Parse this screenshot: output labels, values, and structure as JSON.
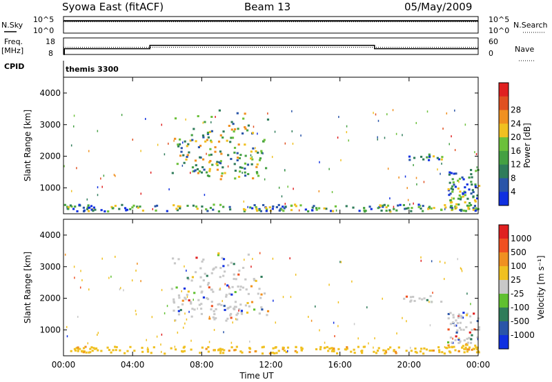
{
  "header": {
    "station": "Syowa East (fitACF)",
    "beam": "Beam 13",
    "date": "05/May/2009"
  },
  "labels": {
    "nsky": "N.Sky",
    "nsearch": "N.Search",
    "freq": "Freq.",
    "mhz": "[MHz]",
    "nave": "Nave",
    "cpid_label": "CPID",
    "cpid_value": "themis 3300",
    "nsky_max": "10^5",
    "nsky_min": "10^0",
    "freq_max": "18",
    "freq_min": "8",
    "nave_max": "60",
    "nave_min": "0"
  },
  "chart_data": [
    {
      "type": "line",
      "name": "noise",
      "x": [
        0,
        24
      ],
      "series": [
        {
          "name": "N.Sky",
          "values": [
            3.7,
            3.7
          ]
        },
        {
          "name": "N.Search",
          "values": [
            3.4,
            3.4
          ]
        }
      ],
      "xlim": [
        0,
        24
      ]
    },
    {
      "type": "line",
      "name": "freq-nave",
      "x": [
        0,
        0.05,
        5,
        18,
        24
      ],
      "series": [
        {
          "name": "Freq. [MHz]",
          "values": [
            8,
            11.5,
            13.5,
            11.5,
            11.5
          ]
        },
        {
          "name": "Nave",
          "values": [
            26,
            26,
            26,
            26,
            26
          ]
        }
      ],
      "xlim": [
        0,
        24
      ],
      "ylim": [
        8,
        18
      ]
    },
    {
      "type": "heatmap",
      "name": "power",
      "ylabel": "Slant Range [km]",
      "colorbar_label": "Power [dB]",
      "colorbar_ticks": [
        "4",
        "8",
        "12",
        "16",
        "20",
        "24",
        "28"
      ],
      "colorbar_colors": [
        "#1030e0",
        "#2a55a8",
        "#2f7c5a",
        "#44a042",
        "#6cc03a",
        "#f0c020",
        "#f09020",
        "#e05020",
        "#e02020"
      ],
      "yticks": [
        "1000",
        "2000",
        "3000",
        "4000"
      ],
      "ylim": [
        180,
        4500
      ],
      "xlim": [
        0,
        24
      ],
      "regions": [
        {
          "t0": 6.2,
          "t1": 11.8,
          "r0": 1300,
          "r1": 3500,
          "level": 0.55
        },
        {
          "t0": 0.0,
          "t1": 1.8,
          "r0": 280,
          "r1": 480,
          "level": 0.3
        },
        {
          "t0": 22.2,
          "t1": 24,
          "r0": 300,
          "r1": 1600,
          "level": 0.35
        },
        {
          "t0": 19.6,
          "t1": 21.9,
          "r0": 1900,
          "r1": 2100,
          "level": 0.25
        },
        {
          "t0": 0,
          "t1": 24,
          "r0": 280,
          "r1": 500,
          "level": 0.3
        }
      ]
    },
    {
      "type": "heatmap",
      "name": "velocity",
      "ylabel": "Slant Range [km]",
      "colorbar_label": "Velocity [m s⁻¹]",
      "colorbar_ticks": [
        "1000",
        "500",
        "100",
        "25",
        "-25",
        "-100",
        "-500",
        "-1000"
      ],
      "colorbar_colors": [
        "#1030e0",
        "#2a55a8",
        "#2f7c5a",
        "#60c030",
        "#c8c8c8",
        "#f0c020",
        "#f09020",
        "#f05020",
        "#e02020"
      ],
      "yticks": [
        "1000",
        "2000",
        "3000",
        "4000"
      ],
      "ylim": [
        180,
        4500
      ],
      "xlim": [
        0,
        24
      ],
      "xlabel": "Time UT",
      "xticks": [
        "00:00",
        "04:00",
        "08:00",
        "12:00",
        "16:00",
        "20:00",
        "00:00"
      ]
    }
  ]
}
